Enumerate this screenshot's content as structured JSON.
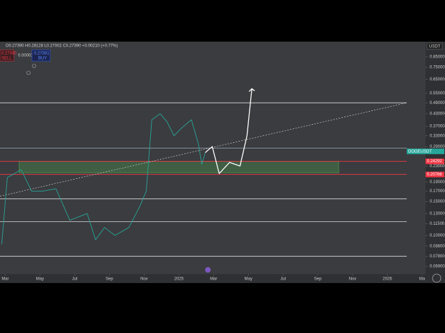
{
  "chart_data": {
    "type": "line",
    "log_scale": true,
    "header": {
      "ohlc": "O0.27390 H0.28128 L0.27002 C0.27390 +0.00210 (+0.77%)",
      "sell_price": "0.27390",
      "sell_label": "SELL",
      "spread": "0.00001",
      "buy_price": "0.27391",
      "buy_label": "BUY"
    },
    "currency": "USDT",
    "xlim": [
      -0.3,
      24.2
    ],
    "ylim": [
      0.063,
      1.02
    ],
    "xticks": [
      {
        "value": 0,
        "label": "Mar"
      },
      {
        "value": 2,
        "label": "May"
      },
      {
        "value": 4,
        "label": "Jul"
      },
      {
        "value": 6,
        "label": "Sep"
      },
      {
        "value": 8,
        "label": "Nov"
      },
      {
        "value": 10,
        "label": "2025"
      },
      {
        "value": 12,
        "label": "Mar"
      },
      {
        "value": 14,
        "label": "May"
      },
      {
        "value": 16,
        "label": "Jul"
      },
      {
        "value": 18,
        "label": "Sep"
      },
      {
        "value": 20,
        "label": "Nov"
      },
      {
        "value": 22,
        "label": "2026"
      },
      {
        "value": 24,
        "label": "Ma"
      }
    ],
    "yticks": [
      {
        "value": 0.85,
        "label": "0.85000"
      },
      {
        "value": 0.75,
        "label": "0.75000"
      },
      {
        "value": 0.65,
        "label": "0.65000"
      },
      {
        "value": 0.55,
        "label": "0.55000"
      },
      {
        "value": 0.49,
        "label": "0.49000"
      },
      {
        "value": 0.43,
        "label": "0.43000"
      },
      {
        "value": 0.37,
        "label": "0.37000"
      },
      {
        "value": 0.33,
        "label": "0.33000"
      },
      {
        "value": 0.29,
        "label": "0.29000"
      },
      {
        "value": 0.23,
        "label": "0.23000"
      },
      {
        "value": 0.19,
        "label": "0.19000"
      },
      {
        "value": 0.17,
        "label": "0.17000"
      },
      {
        "value": 0.15,
        "label": "0.15000"
      },
      {
        "value": 0.13,
        "label": "0.13000"
      },
      {
        "value": 0.115,
        "label": "0.11500"
      },
      {
        "value": 0.1,
        "label": "0.10000"
      },
      {
        "value": 0.088,
        "label": "0.08800"
      },
      {
        "value": 0.078,
        "label": "0.07800"
      },
      {
        "value": 0.069,
        "label": "0.06900"
      }
    ],
    "series": [
      {
        "name": "DOGEUSDT",
        "color": "#26a69a",
        "x": [
          -0.2,
          0.12,
          0.92,
          1.52,
          2.12,
          2.92,
          3.72,
          4.72,
          5.2,
          5.72,
          6.32,
          7.12,
          7.72,
          8.12,
          8.44,
          8.92,
          9.32,
          9.72,
          10.12,
          10.72,
          11.12,
          11.32,
          11.52
        ],
        "values": [
          0.09,
          0.2,
          0.22,
          0.17,
          0.17,
          0.175,
          0.12,
          0.13,
          0.095,
          0.11,
          0.1,
          0.11,
          0.14,
          0.17,
          0.4,
          0.43,
          0.39,
          0.33,
          0.36,
          0.4,
          0.3,
          0.235,
          0.27
        ]
      },
      {
        "name": "projection",
        "color": "#ffffff",
        "x": [
          11.52,
          11.92,
          12.32,
          12.92,
          13.52,
          13.92,
          14.2
        ],
        "values": [
          0.27,
          0.29,
          0.21,
          0.24,
          0.23,
          0.33,
          0.58
        ]
      }
    ],
    "trendline": {
      "color": "#cccccc",
      "x": [
        -0.3,
        23.1
      ],
      "values": [
        0.16,
        0.49
      ]
    },
    "zone": {
      "color": "#4caf50",
      "x": [
        0.8,
        19.2
      ],
      "values": [
        0.212,
        0.243
      ]
    },
    "levels": [
      {
        "value": 0.49,
        "color": "#dddddd"
      },
      {
        "value": 0.285,
        "color": "#9ab"
      },
      {
        "value": 0.243,
        "color": "#f23645"
      },
      {
        "value": 0.208,
        "color": "#f23645"
      },
      {
        "value": 0.155,
        "color": "#dddddd"
      },
      {
        "value": 0.118,
        "color": "#dddddd"
      },
      {
        "value": 0.078,
        "color": "#dddddd"
      }
    ],
    "price_tags": [
      {
        "value": 0.2739,
        "label": "DOGEUSDT",
        "color": "#26a69a"
      },
      {
        "value": 0.24292,
        "label": "0.24292",
        "color": "#f23645"
      },
      {
        "value": 0.20766,
        "label": "0.20766",
        "color": "#f23645"
      }
    ]
  }
}
